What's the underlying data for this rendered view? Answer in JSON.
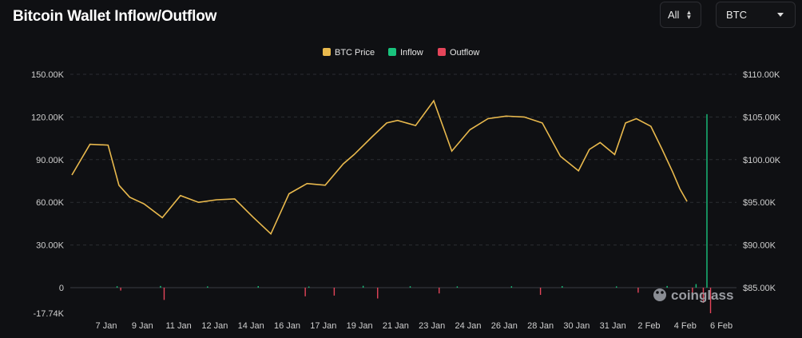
{
  "header": {
    "title": "Bitcoin Wallet Inflow/Outflow",
    "range_select": "All",
    "coin_select": "BTC"
  },
  "watermark": "coinglass",
  "colors": {
    "price": "#e9b94d",
    "inflow": "#19c37d",
    "outflow": "#e5455a",
    "grid": "#2b2d33"
  },
  "chart_data": {
    "type": "line",
    "title": "Bitcoin Wallet Inflow/Outflow",
    "legend": {
      "placement": "top-center",
      "entries": [
        "BTC Price",
        "Inflow",
        "Outflow"
      ]
    },
    "x_tick_labels": [
      "7 Jan",
      "9 Jan",
      "11 Jan",
      "12 Jan",
      "14 Jan",
      "16 Jan",
      "17 Jan",
      "19 Jan",
      "21 Jan",
      "23 Jan",
      "24 Jan",
      "26 Jan",
      "28 Jan",
      "30 Jan",
      "31 Jan",
      "2 Feb",
      "4 Feb",
      "6 Feb"
    ],
    "left_axis": {
      "ticks": [
        "-17.74K",
        "0",
        "30.00K",
        "60.00K",
        "90.00K",
        "120.00K",
        "150.00K"
      ],
      "ylim": [
        -17740,
        150000
      ]
    },
    "right_axis": {
      "ticks": [
        "$85.00K",
        "$90.00K",
        "$95.00K",
        "$100.00K",
        "$105.00K",
        "$110.00K"
      ],
      "ylim": [
        85000,
        110000
      ]
    },
    "grid": true,
    "series": [
      {
        "name": "BTC Price",
        "axis": "right",
        "x": [
          0,
          0.5,
          1,
          1.3,
          1.6,
          2,
          2.5,
          3,
          3.5,
          4,
          4.5,
          5,
          5.5,
          6,
          6.5,
          7,
          7.5,
          7.8,
          8.3,
          8.7,
          9,
          9.5,
          10,
          10.5,
          11,
          11.5,
          12,
          12.5,
          13,
          13.5,
          14,
          14.3,
          14.6,
          15,
          15.3,
          15.6,
          16,
          16.3,
          16.6,
          16.8,
          17
        ],
        "values": [
          98200,
          101800,
          101700,
          97000,
          95600,
          94800,
          93200,
          95800,
          95000,
          95300,
          95400,
          93300,
          91300,
          96000,
          97200,
          97000,
          99500,
          100600,
          102700,
          104300,
          104600,
          104000,
          106900,
          101000,
          103500,
          104800,
          105100,
          105000,
          104300,
          100400,
          98700,
          101200,
          102000,
          100600,
          104300,
          104800,
          103900,
          101300,
          98600,
          96600,
          95100
        ]
      },
      {
        "name": "Inflow",
        "axis": "left",
        "x": [
          0.3,
          1.5,
          2.8,
          4.2,
          5.6,
          7.1,
          8.4,
          9.7,
          11.2,
          12.6,
          14.1,
          15.5,
          16.3,
          16.6
        ],
        "values": [
          1000,
          1200,
          900,
          1100,
          800,
          1300,
          1000,
          900,
          1000,
          1100,
          900,
          1200,
          2500,
          122000
        ]
      },
      {
        "name": "Outflow",
        "axis": "left",
        "x": [
          0.4,
          1.6,
          5.5,
          6.3,
          7.5,
          9.2,
          12.0,
          14.7,
          16.2,
          16.5,
          16.7
        ],
        "values": [
          -2000,
          -8500,
          -6000,
          -5500,
          -7500,
          -4000,
          -5000,
          -3500,
          -8000,
          -10500,
          -17740
        ]
      }
    ]
  }
}
